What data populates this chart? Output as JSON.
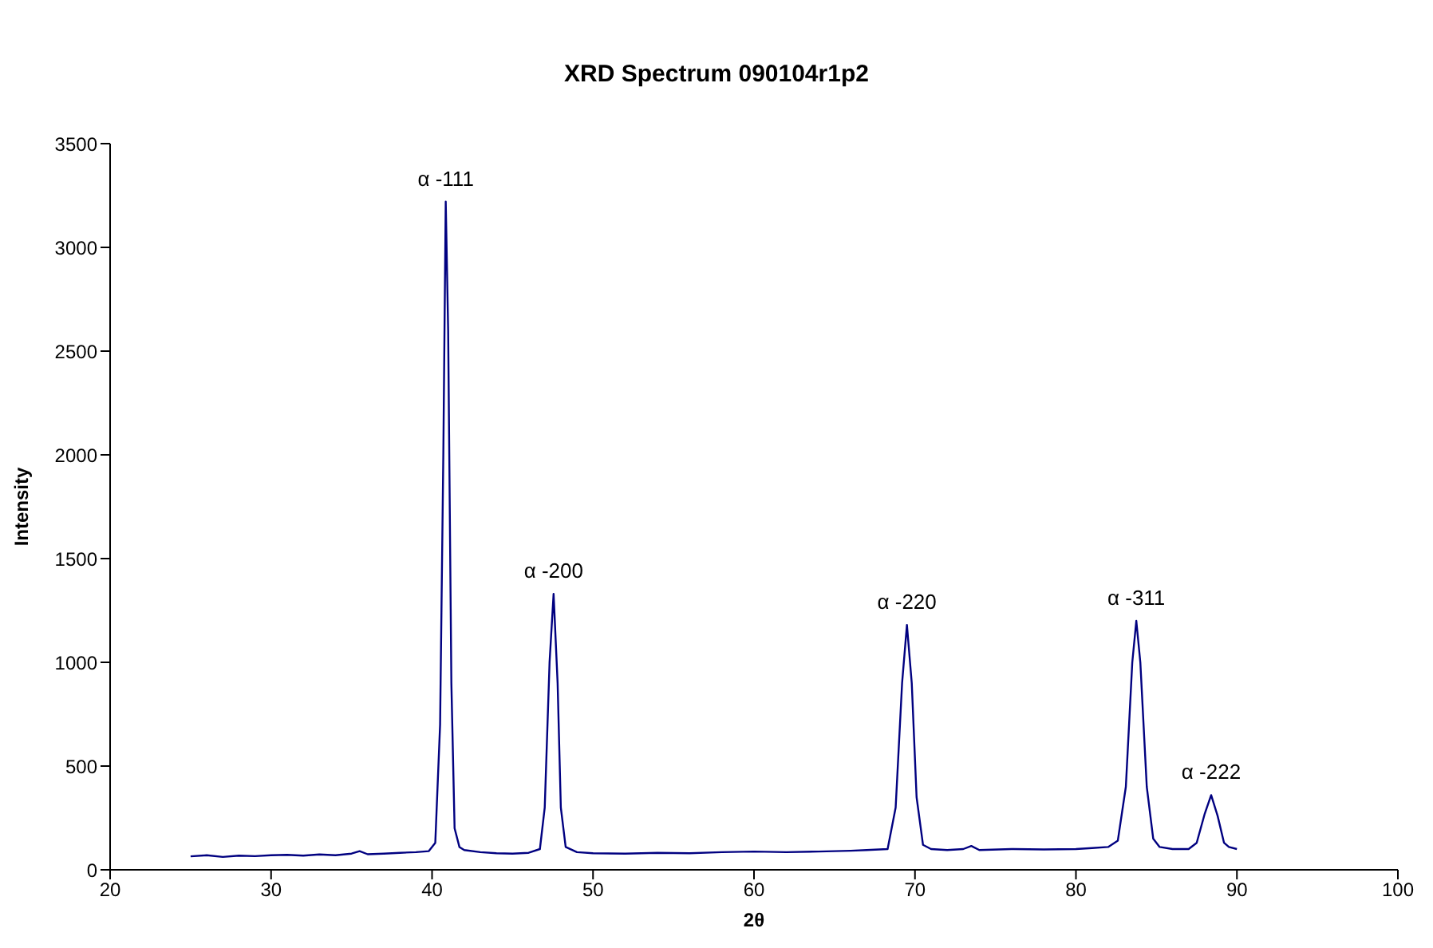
{
  "chart_data": {
    "type": "line",
    "title": "XRD Spectrum 090104r1p2",
    "xlabel": "2θ",
    "ylabel": "Intensity",
    "x": [
      25,
      26,
      27,
      28,
      29,
      30,
      31,
      32,
      33,
      34,
      35,
      35.5,
      36,
      37,
      38,
      39,
      39.8,
      40.2,
      40.5,
      40.7,
      40.85,
      41.0,
      41.2,
      41.4,
      41.7,
      42,
      43,
      44,
      45,
      46,
      46.7,
      47.0,
      47.3,
      47.55,
      47.8,
      48.0,
      48.3,
      49,
      50,
      52,
      54,
      56,
      58,
      60,
      62,
      64,
      66,
      67,
      68.3,
      68.8,
      69.2,
      69.5,
      69.8,
      70.1,
      70.5,
      71,
      72,
      73,
      73.5,
      74,
      76,
      78,
      80,
      81,
      82,
      82.6,
      83.1,
      83.5,
      83.75,
      84.0,
      84.4,
      84.8,
      85.2,
      86,
      87,
      87.5,
      88.0,
      88.4,
      88.8,
      89.2,
      89.5,
      90
    ],
    "series": [
      {
        "color": "#000080",
        "values": [
          65,
          70,
          62,
          68,
          66,
          70,
          72,
          68,
          74,
          70,
          78,
          90,
          75,
          78,
          82,
          85,
          90,
          130,
          700,
          2000,
          3220,
          2600,
          900,
          200,
          110,
          95,
          85,
          80,
          78,
          82,
          100,
          300,
          1000,
          1330,
          900,
          300,
          110,
          85,
          80,
          78,
          82,
          80,
          85,
          88,
          85,
          88,
          92,
          95,
          100,
          300,
          900,
          1180,
          900,
          350,
          120,
          100,
          95,
          100,
          115,
          95,
          100,
          98,
          100,
          105,
          110,
          140,
          400,
          1000,
          1200,
          1000,
          400,
          150,
          110,
          100,
          100,
          130,
          270,
          360,
          260,
          130,
          110,
          100
        ]
      }
    ],
    "annotations": [
      {
        "text": "α -111",
        "x": 40.85,
        "y": 3220
      },
      {
        "text": "α -200",
        "x": 47.55,
        "y": 1330
      },
      {
        "text": "α -220",
        "x": 69.5,
        "y": 1180
      },
      {
        "text": "α -311",
        "x": 83.75,
        "y": 1200
      },
      {
        "text": "α -222",
        "x": 88.4,
        "y": 360
      }
    ],
    "xlim": [
      20,
      100
    ],
    "xticks": [
      20,
      30,
      40,
      50,
      60,
      70,
      80,
      90,
      100
    ],
    "ylim": [
      0,
      3500
    ],
    "yticks": [
      0,
      500,
      1000,
      1500,
      2000,
      2500,
      3000,
      3500
    ],
    "grid": false,
    "legend": false,
    "marker": "none",
    "line_style": "solid"
  }
}
